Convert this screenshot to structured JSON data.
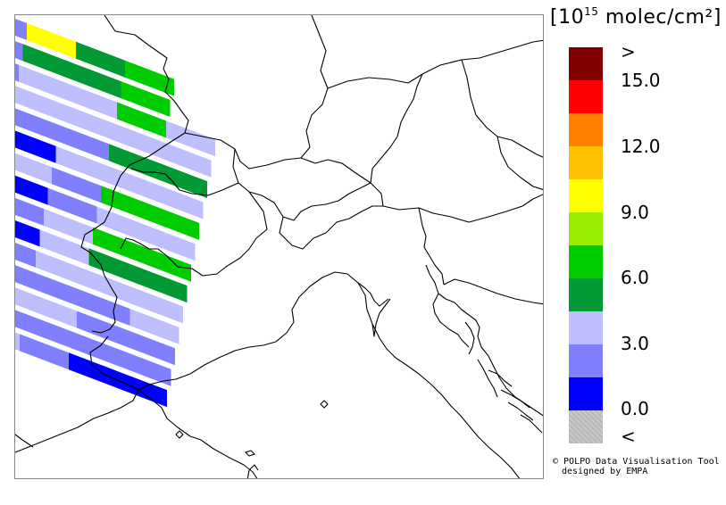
{
  "legend": {
    "units_prefix": "[10",
    "units_exp": "15",
    "units_suffix": " molec/cm²]",
    "colors": [
      "#7f0000",
      "#ff0000",
      "#ff7f00",
      "#ffc000",
      "#ffff00",
      "#99ee00",
      "#00cc00",
      "#009933",
      "#bfbfff",
      "#8080ff",
      "#0000ff",
      "#c0c0c0"
    ],
    "labels": [
      ">",
      "15.0",
      "12.0",
      "9.0",
      "6.0",
      "3.0",
      "0.0",
      "<"
    ]
  },
  "credit": {
    "line1": "© POLPO Data Visualisation Tool",
    "line2": "designed by EMPA"
  },
  "swath_rows": [
    [
      "#8080ff",
      "#ffff00",
      "#009933",
      "#00cc00"
    ],
    [
      "#8080ff",
      "#009933",
      "#009933",
      "#00cc00"
    ],
    [
      "#8080ff",
      "#bfbfff",
      "#bfbfff",
      "#00cc00",
      "#bfbfff"
    ],
    [
      "#bfbfff",
      "#bfbfff",
      "#bfbfff",
      "#bfbfff",
      "#bfbfff"
    ],
    [
      "#bfbfff",
      "#8080ff",
      "#8080ff",
      "#009933",
      "#009933"
    ],
    [
      "#8080ff",
      "#0000ff",
      "#bfbfff",
      "#bfbfff",
      "#bfbfff"
    ],
    [
      "#bfbfff",
      "#bfbfff",
      "#8080ff",
      "#00cc00",
      "#00cc00"
    ],
    [
      "#8080ff",
      "#0000ff",
      "#8080ff",
      "#bfbfff",
      "#bfbfff"
    ],
    [
      "#0000ff",
      "#8080ff",
      "#bfbfff",
      "#00cc00",
      "#00cc00"
    ],
    [
      "#8080ff",
      "#0000ff",
      "#bfbfff",
      "#009933",
      "#009933"
    ],
    [
      "#bfbfff",
      "#8080ff",
      "#bfbfff",
      "#bfbfff",
      "#bfbfff"
    ],
    [
      "#8080ff",
      "#8080ff",
      "#8080ff",
      "#8080ff",
      "#bfbfff"
    ],
    [
      "#bfbfff",
      "#bfbfff",
      "#bfbfff",
      "#8080ff",
      "#8080ff"
    ],
    [
      "#00cc00",
      "#8080ff",
      "#8080ff",
      "#8080ff",
      "#8080ff"
    ],
    [
      "#bfbfff",
      "#bfbfff",
      "#8080ff",
      "#0000ff",
      "#0000ff"
    ]
  ]
}
